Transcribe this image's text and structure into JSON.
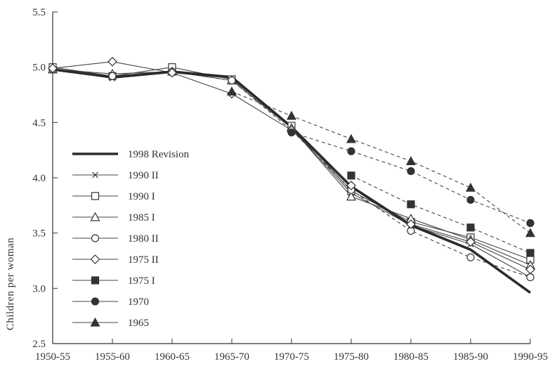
{
  "chart_data": {
    "type": "line",
    "title": "",
    "xlabel": "",
    "ylabel": "Children per woman",
    "ylim": [
      2.5,
      5.5
    ],
    "yticks": [
      "2.5",
      "3.0",
      "3.5",
      "4.0",
      "4.5",
      "5.0",
      "5.5"
    ],
    "categories": [
      "1950-55",
      "1955-60",
      "1960-65",
      "1965-70",
      "1970-75",
      "1975-80",
      "1980-85",
      "1985-90",
      "1990-95"
    ],
    "legend_position": "left-center",
    "grid": false,
    "series": [
      {
        "name": "1998 Revision",
        "marker": "none",
        "dash": "solid",
        "thick": true,
        "values": [
          4.98,
          4.91,
          4.96,
          4.91,
          4.46,
          3.92,
          3.57,
          3.35,
          2.96
        ]
      },
      {
        "name": "1990 II",
        "marker": "x",
        "dash": "solid",
        "values": [
          4.98,
          4.9,
          4.95,
          4.9,
          4.45,
          3.86,
          3.57,
          3.4,
          3.1
        ]
      },
      {
        "name": "1990 I",
        "marker": "open-square",
        "dash": "solid",
        "values": [
          5.0,
          4.92,
          5.0,
          4.89,
          4.47,
          3.88,
          3.6,
          3.46,
          3.26
        ]
      },
      {
        "name": "1985 I",
        "marker": "open-triangle",
        "dash": "solid",
        "values": [
          4.98,
          4.94,
          4.96,
          4.88,
          4.45,
          3.83,
          3.63,
          3.44,
          3.21
        ]
      },
      {
        "name": "1980 II",
        "marker": "open-circle",
        "dash": "dashed",
        "values": [
          4.98,
          4.92,
          4.96,
          4.88,
          4.43,
          3.89,
          3.52,
          3.28,
          3.1
        ]
      },
      {
        "name": "1975 II",
        "marker": "open-diamond",
        "dash": "solid",
        "values": [
          4.99,
          5.05,
          4.95,
          4.76,
          4.43,
          3.93,
          3.58,
          3.42,
          3.17
        ]
      },
      {
        "name": "1975 I",
        "marker": "filled-square",
        "dash": "dashed",
        "values": [
          null,
          null,
          null,
          null,
          null,
          4.02,
          3.76,
          3.55,
          3.32
        ]
      },
      {
        "name": "1970",
        "marker": "filled-circle",
        "dash": "dashed",
        "values": [
          null,
          null,
          null,
          null,
          4.41,
          4.24,
          4.06,
          3.8,
          3.59
        ]
      },
      {
        "name": "1965",
        "marker": "filled-triangle",
        "dash": "dashed",
        "values": [
          null,
          null,
          null,
          4.78,
          4.56,
          4.35,
          4.15,
          3.91,
          3.5
        ]
      }
    ]
  }
}
